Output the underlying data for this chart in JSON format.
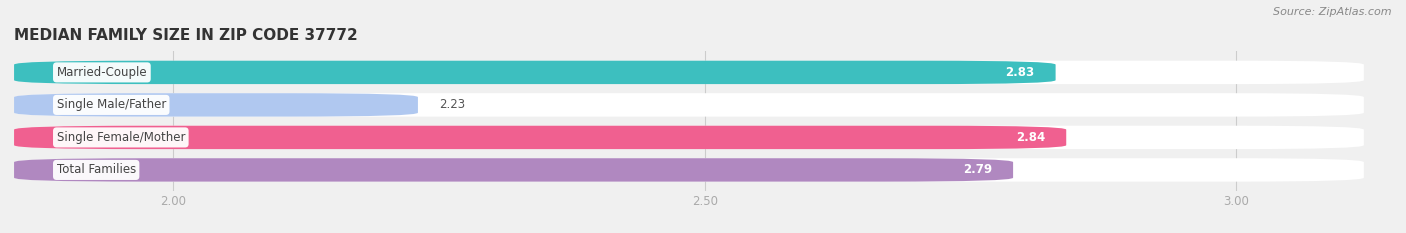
{
  "title": "MEDIAN FAMILY SIZE IN ZIP CODE 37772",
  "source": "Source: ZipAtlas.com",
  "categories": [
    "Married-Couple",
    "Single Male/Father",
    "Single Female/Mother",
    "Total Families"
  ],
  "values": [
    2.83,
    2.23,
    2.84,
    2.79
  ],
  "bar_colors": [
    "#3dbfbf",
    "#b0c8f0",
    "#f06090",
    "#b088c0"
  ],
  "xlim_min": 1.85,
  "xlim_max": 3.12,
  "xticks": [
    2.0,
    2.5,
    3.0
  ],
  "bar_height": 0.72,
  "label_fontsize": 8.5,
  "value_fontsize": 8.5,
  "title_fontsize": 11,
  "source_fontsize": 8,
  "bg_color": "#f0f0f0",
  "bar_bg_color": "#e8e8e8",
  "grid_color": "#cccccc",
  "value_inside_color": "white",
  "value_outside_color": "#555555",
  "label_text_color": "#444444"
}
